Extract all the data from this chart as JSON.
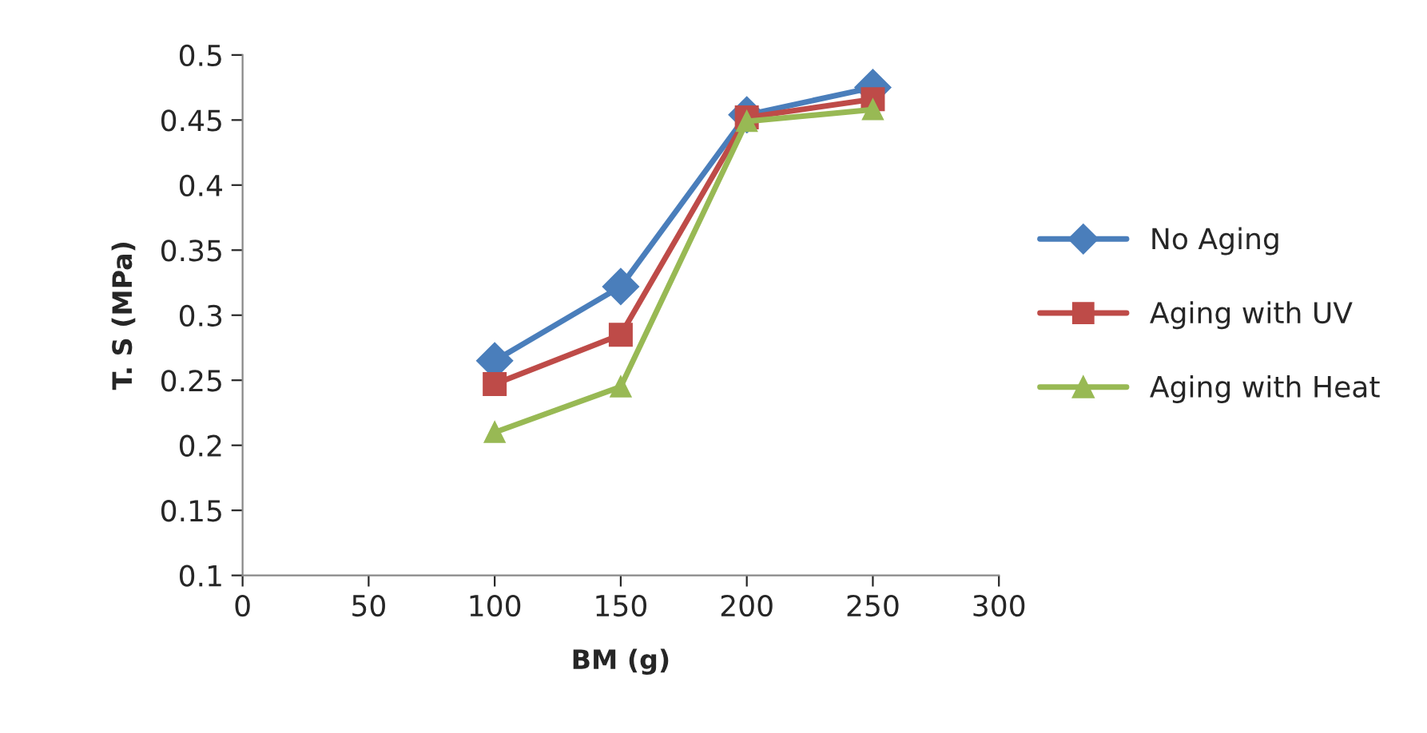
{
  "chart_data": {
    "type": "line",
    "xlabel": "BM (g)",
    "ylabel": "T. S (MPa)",
    "x": [
      100,
      150,
      200,
      250
    ],
    "series": [
      {
        "name": "No Aging",
        "color": "#4a7ebb",
        "marker": "diamond",
        "values": [
          0.265,
          0.322,
          0.454,
          0.475
        ]
      },
      {
        "name": "Aging with UV",
        "color": "#be4b48",
        "marker": "square",
        "values": [
          0.247,
          0.285,
          0.452,
          0.466
        ]
      },
      {
        "name": "Aging with Heat",
        "color": "#98b954",
        "marker": "triangle",
        "values": [
          0.21,
          0.245,
          0.449,
          0.458
        ]
      }
    ],
    "xlim": [
      0,
      300
    ],
    "xticks": [
      0,
      50,
      100,
      150,
      200,
      250,
      300
    ],
    "ylim": [
      0.1,
      0.5
    ],
    "yticks": [
      0.1,
      0.15,
      0.2,
      0.25,
      0.3,
      0.35,
      0.4,
      0.45,
      0.5
    ],
    "grid": false,
    "legend": "right",
    "line_style": "solid"
  }
}
